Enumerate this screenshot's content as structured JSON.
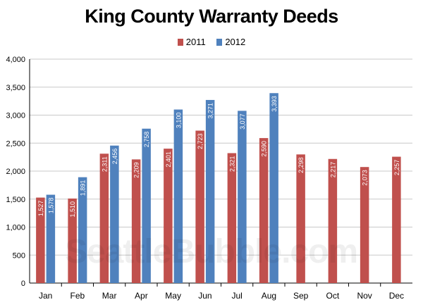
{
  "watermark": "SeattleBubble.com",
  "colors": {
    "s2011": "#c0504d",
    "s2012": "#4f81bd",
    "grid": "#c8c8c8",
    "axis": "#000000"
  },
  "chart_data": {
    "type": "bar",
    "title": "King County Warranty Deeds",
    "categories": [
      "Jan",
      "Feb",
      "Mar",
      "Apr",
      "May",
      "Jun",
      "Jul",
      "Aug",
      "Sep",
      "Oct",
      "Nov",
      "Dec"
    ],
    "series": [
      {
        "name": "2011",
        "values": [
          1527,
          1510,
          2311,
          2209,
          2401,
          2723,
          2321,
          2590,
          2298,
          2217,
          2073,
          2257
        ],
        "labels": [
          "1,527",
          "1,510",
          "2,311",
          "2,209",
          "2,401",
          "2,723",
          "2,321",
          "2,590",
          "2,298",
          "2,217",
          "2,073",
          "2,257"
        ]
      },
      {
        "name": "2012",
        "values": [
          1578,
          1891,
          2456,
          2758,
          3100,
          3271,
          3077,
          3393,
          null,
          null,
          null,
          null
        ],
        "labels": [
          "1,578",
          "1,891",
          "2,456",
          "2,758",
          "3,100",
          "3,271",
          "3,077",
          "3,393",
          "",
          "",
          "",
          ""
        ]
      }
    ],
    "ylim": [
      0,
      4000
    ],
    "yticks": [
      0,
      500,
      1000,
      1500,
      2000,
      2500,
      3000,
      3500,
      4000
    ],
    "ytick_labels": [
      "0",
      "500",
      "1,000",
      "1,500",
      "2,000",
      "2,500",
      "3,000",
      "3,500",
      "4,000"
    ],
    "grid": true,
    "legend": "top-center"
  }
}
